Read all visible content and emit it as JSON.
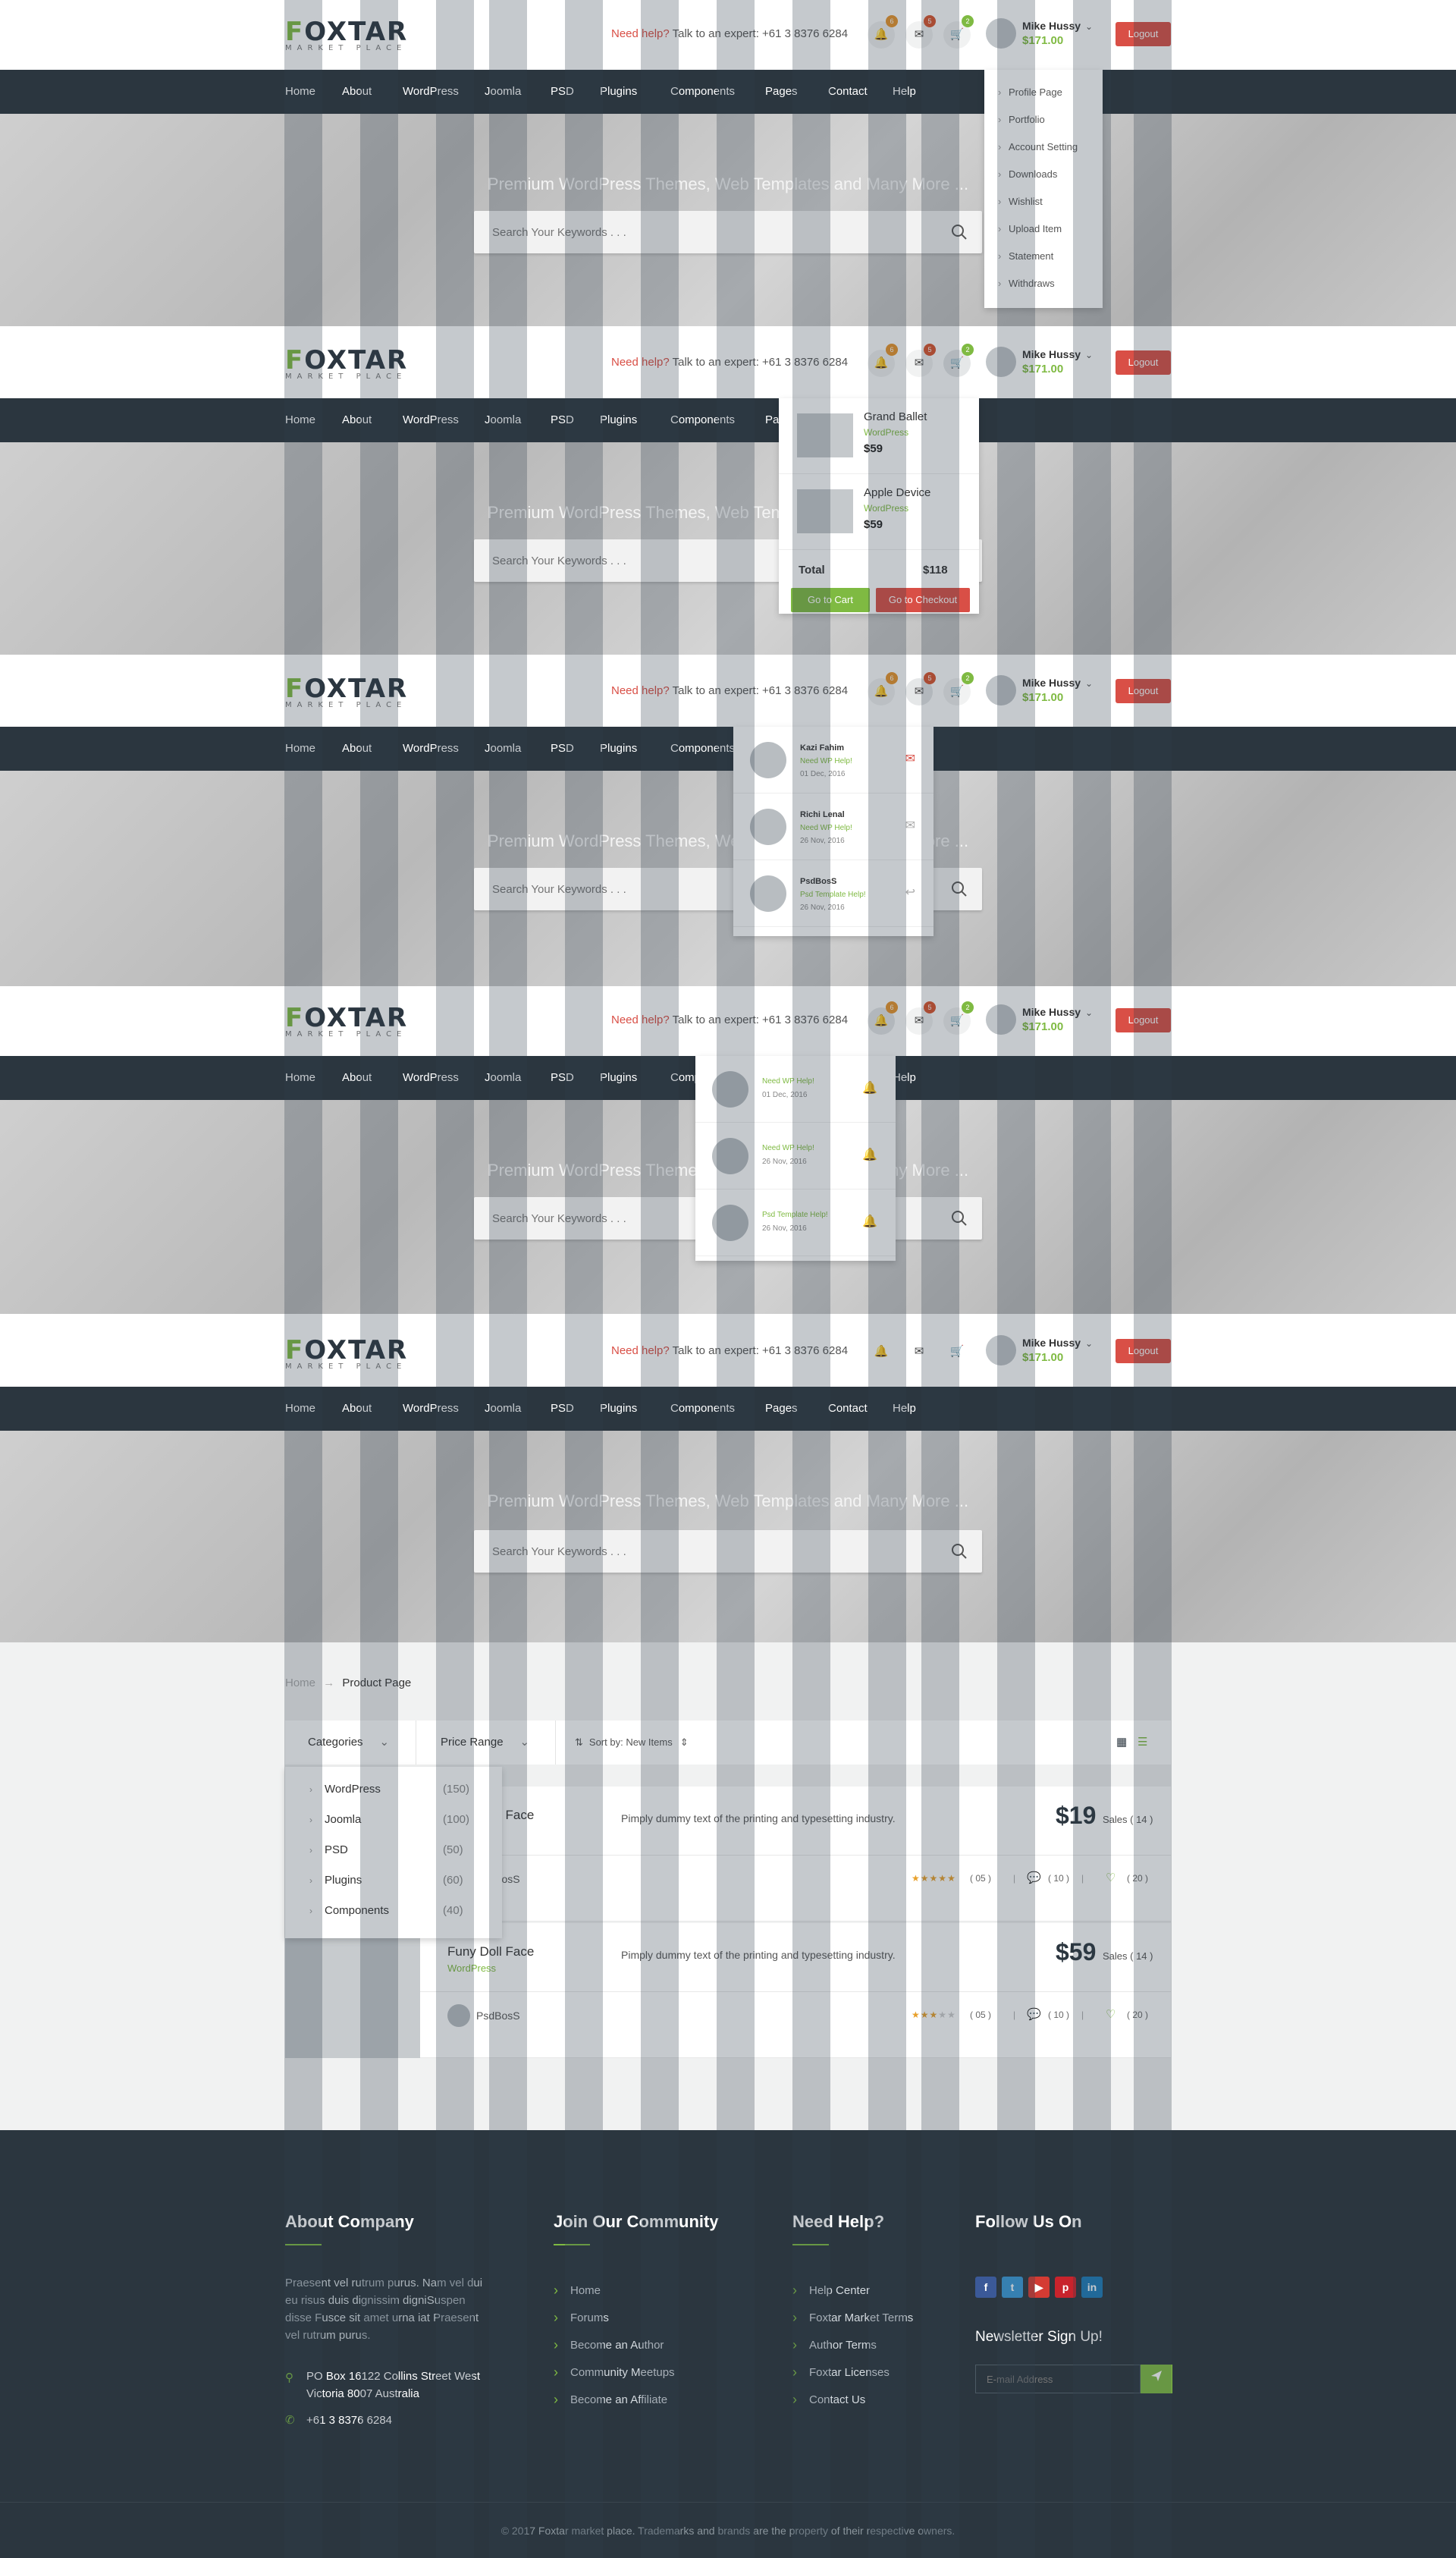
{
  "brand": {
    "logo_first": "F",
    "logo_rest": "OXTAR",
    "tagline": "MARKET PLACE"
  },
  "header": {
    "help_red": "Need help?",
    "help_text": " Talk to an expert: +61 3 8376 6284",
    "badges": {
      "notifications": "6",
      "messages": "5",
      "cart": "2"
    },
    "user_name": "Mike Hussy",
    "user_balance": "$171.00",
    "logout": "Logout"
  },
  "nav": [
    "Home",
    "About",
    "WordPress",
    "Joomla",
    "PSD",
    "Plugins",
    "Components",
    "Pages",
    "Contact",
    "Help"
  ],
  "hero": {
    "title": "Premium WordPress Themes, Web Templates and Many More ...",
    "search_placeholder": "Search Your Keywords . . ."
  },
  "profile_menu": [
    "Profile Page",
    "Portfolio",
    "Account Setting",
    "Downloads",
    "Wishlist",
    "Upload Item",
    "Statement",
    "Withdraws"
  ],
  "cart": {
    "items": [
      {
        "name": "Grand Ballet",
        "category": "WordPress",
        "price": "$59"
      },
      {
        "name": "Apple Device",
        "category": "WordPress",
        "price": "$59"
      }
    ],
    "total_label": "Total",
    "total": "$118",
    "go_cart": "Go to Cart",
    "checkout": "Go to Checkout"
  },
  "messages": [
    {
      "name": "Kazi Fahim",
      "subject": "Need WP Help!",
      "date": "01 Dec, 2016"
    },
    {
      "name": "Richi Lenal",
      "subject": "Need WP Help!",
      "date": "26 Nov, 2016"
    },
    {
      "name": "PsdBosS",
      "subject": "Psd Template Help!",
      "date": "26 Nov, 2016"
    }
  ],
  "notifications": [
    {
      "subject": "Need WP Help!",
      "date": "01 Dec, 2016"
    },
    {
      "subject": "Need WP Help!",
      "date": "26 Nov, 2016"
    },
    {
      "subject": "Psd Template Help!",
      "date": "26 Nov, 2016"
    }
  ],
  "breadcrumb": {
    "home": "Home",
    "sep": "→",
    "current": "Product Page"
  },
  "filters": {
    "categories": "Categories",
    "price": "Price Range",
    "sort": "Sort by: New Items"
  },
  "category_menu": [
    {
      "label": "WordPress",
      "count": "(150)"
    },
    {
      "label": "Joomla",
      "count": "(100)"
    },
    {
      "label": "PSD",
      "count": "(50)"
    },
    {
      "label": "Plugins",
      "count": "(60)"
    },
    {
      "label": "Components",
      "count": "(40)"
    }
  ],
  "products": [
    {
      "name": "Funy Doll Face",
      "category": "WordPress",
      "desc": "Pimply dummy text of the printing and typesetting industry.",
      "price": "$19",
      "sales": "Sales ( 14 )",
      "seller": "PsdBosS",
      "rating_count": "( 05 )",
      "comments": "( 10 )",
      "likes": "( 20 )",
      "rating": 5
    },
    {
      "name": "Funy Doll Face",
      "category": "WordPress",
      "desc": "Pimply dummy text of the printing and typesetting industry.",
      "price": "$59",
      "sales": "Sales ( 14 )",
      "seller": "PsdBosS",
      "rating_count": "( 05 )",
      "comments": "( 10 )",
      "likes": "( 20 )",
      "rating": 3
    }
  ],
  "footer": {
    "about_title": "About Company",
    "about_text": "Praesent vel rutrum purus. Nam vel dui eu risus duis dignissim digniSuspen disse Fusce sit amet urna iat Praesent vel rutrum purus.",
    "address_1": "PO Box 16122 Collins Street West",
    "address_2": "Victoria 8007 Australia",
    "phone": "+61 3 8376 6284",
    "community_title": "Join Our Community",
    "community_links": [
      "Home",
      "Forums",
      "Become an Author",
      "Community Meetups",
      "Become an Affiliate"
    ],
    "help_title": "Need Help?",
    "help_links": [
      "Help Center",
      "Foxtar Market Terms",
      "Author Terms",
      "Foxtar Licenses",
      "Contact Us"
    ],
    "follow_title": "Follow Us On",
    "newsletter_title": "Newsletter Sign Up!",
    "email_placeholder": "E-mail Address",
    "copyright": "© 2017 Foxtar market place. Trademarks and brands are the property of their respective owners."
  },
  "colors": {
    "accent": "#7fba42",
    "danger": "#d94f46",
    "dark": "#2b363f"
  }
}
